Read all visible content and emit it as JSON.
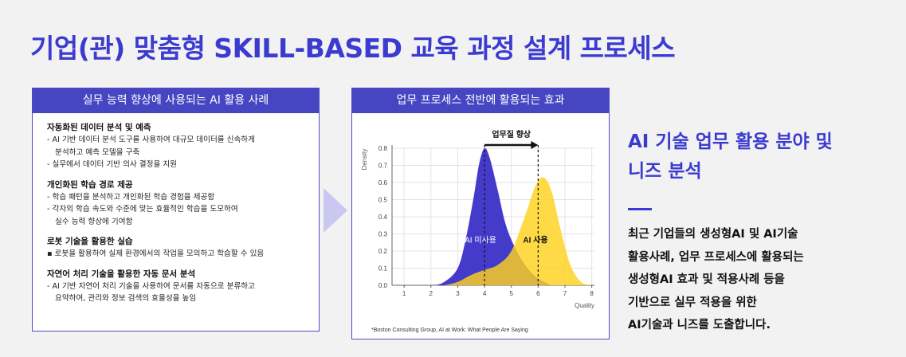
{
  "page": {
    "title": "기업(관) 맞춤형 SKILL-BASED 교육 과정 설계 프로세스"
  },
  "left_panel": {
    "header": "실무 능력 향상에 사용되는 AI 활용 사례",
    "cases": [
      {
        "title": "자동화된 데이터 분석 및 예측",
        "lines": [
          {
            "text": "- AI 기반 데이터 분석 도구를 사용하여 대규모 데이터를 신속하게",
            "cont": false
          },
          {
            "text": "분석하고 예측 모델을 구축",
            "cont": true
          },
          {
            "text": "- 실무에서 데이터 기반 의사 결정을 지원",
            "cont": false
          }
        ]
      },
      {
        "title": "개인화된 학습 경로 제공",
        "lines": [
          {
            "text": "- 학습 패턴을 분석하고 개인화된 학습 경험을 제공함",
            "cont": false
          },
          {
            "text": "- 각자의 학습 속도와 수준에 맞는 효율적인 학습을 도모하여",
            "cont": false
          },
          {
            "text": "실수 능력 향상에 기여함",
            "cont": true
          }
        ]
      },
      {
        "title": "로봇 기술을 활용한 실습",
        "lines": [
          {
            "text": "▪ 로봇을 활용하여 실제 환경에서의 작업을 모의하고 학습할 수 있음",
            "cont": false
          }
        ]
      },
      {
        "title": "자연어 처리 기술을 활용한 자동 문서 분석",
        "lines": [
          {
            "text": "- AI 기반 자연어 처리 기술을 사용하여 문서를 자동으로 분류하고",
            "cont": false
          },
          {
            "text": "요약하여, 관리와 정보 검색의 효율성을 높임",
            "cont": true
          }
        ]
      }
    ]
  },
  "middle_panel": {
    "header": "업무 프로세스 전반에 활용되는 효과",
    "source_note": "*Boston Consulting Group, AI at Work: What People Are Saying"
  },
  "chart_data": {
    "type": "area",
    "title": "업무질 향상",
    "xlabel": "Quality",
    "ylabel": "Density",
    "xlim": [
      0,
      8
    ],
    "ylim": [
      0,
      0.8
    ],
    "x_ticks": [
      1,
      2,
      3,
      4,
      5,
      6,
      7,
      8
    ],
    "y_ticks": [
      0.0,
      0.1,
      0.2,
      0.3,
      0.4,
      0.5,
      0.6,
      0.7,
      0.8
    ],
    "grid": true,
    "series": [
      {
        "name": "AI 미사용",
        "color": "#3a30c8",
        "mean_marker": 4.0,
        "x": [
          1.0,
          2.0,
          2.5,
          3.0,
          3.3,
          3.6,
          3.8,
          4.0,
          4.2,
          4.5,
          4.8,
          5.2,
          5.6,
          6.0,
          6.5
        ],
        "y": [
          0.0,
          0.0,
          0.02,
          0.1,
          0.27,
          0.52,
          0.71,
          0.8,
          0.74,
          0.55,
          0.35,
          0.2,
          0.1,
          0.04,
          0.0
        ]
      },
      {
        "name": "AI 사용",
        "color": "#ffd21e",
        "mean_marker": 6.0,
        "x": [
          2.5,
          3.0,
          3.5,
          4.0,
          4.5,
          5.0,
          5.5,
          5.9,
          6.2,
          6.5,
          6.8,
          7.2,
          7.6,
          8.0
        ],
        "y": [
          0.0,
          0.02,
          0.06,
          0.09,
          0.12,
          0.2,
          0.4,
          0.58,
          0.63,
          0.55,
          0.35,
          0.12,
          0.02,
          0.0
        ]
      }
    ]
  },
  "right_section": {
    "title_line1": "AI 기술 업무 활용 분야 및",
    "title_line2": "니즈 분석",
    "body_lines": [
      "최근 기업들의 생성형AI 및 AI기술",
      "활용사례, 업무 프로세스에 활용되는",
      "생성형AI 효과 및 적용사례 등을",
      "기반으로 실무 적용을 위한",
      "AI기술과 니즈를 도출합니다."
    ]
  },
  "colors": {
    "accent": "#3b3bd0",
    "header_bg": "#4646c2",
    "ai_unused": "#3a30c8",
    "ai_used": "#ffd21e"
  }
}
